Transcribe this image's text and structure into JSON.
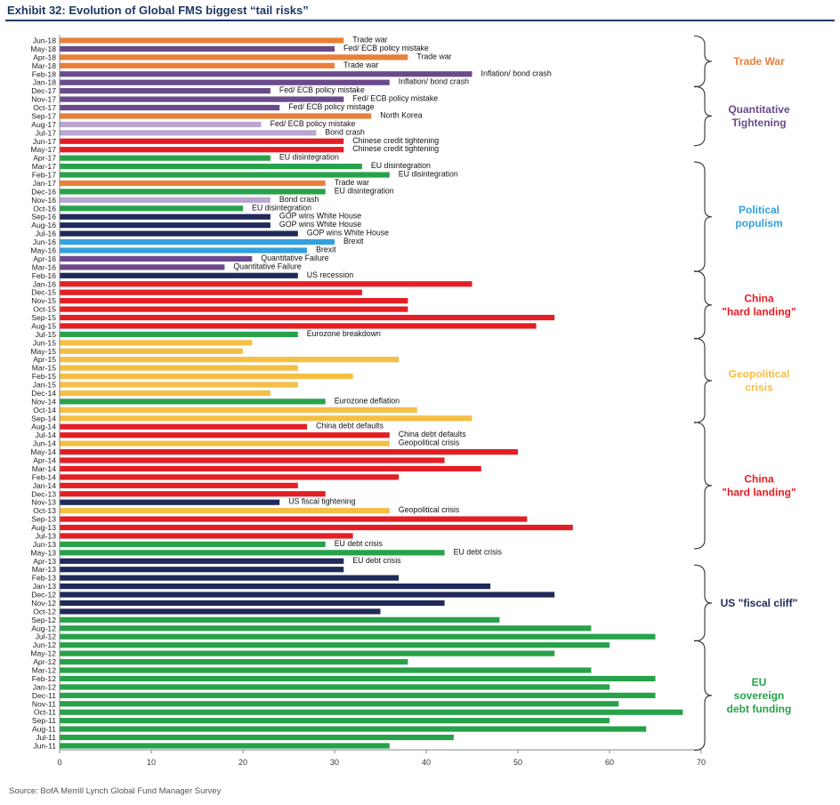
{
  "header": {
    "title": "Exhibit 32: Evolution of Global FMS biggest “tail risks”",
    "source": "Source: BofA Merrill Lynch Global Fund Manager Survey"
  },
  "colors": {
    "trade": "#e8803a",
    "purple": "#6a4a8c",
    "lavender": "#b9a7d2",
    "red": "#e31e24",
    "green": "#27a24a",
    "blue": "#34a0dc",
    "navy": "#1f2a5a",
    "yellow": "#f4bf45"
  },
  "chart_data": {
    "type": "bar",
    "orientation": "horizontal",
    "title": "Exhibit 32: Evolution of Global FMS biggest “tail risks”",
    "xlabel": "",
    "ylabel": "",
    "xlim": [
      0,
      70
    ],
    "xticks": [
      0,
      10,
      20,
      30,
      40,
      50,
      60,
      70
    ],
    "grid": false,
    "categories": [
      "Jun-18",
      "May-18",
      "Apr-18",
      "Mar-18",
      "Feb-18",
      "Jan-18",
      "Dec-17",
      "Nov-17",
      "Oct-17",
      "Sep-17",
      "Aug-17",
      "Jul-17",
      "Jun-17",
      "May-17",
      "Apr-17",
      "Mar-17",
      "Feb-17",
      "Jan-17",
      "Dec-16",
      "Nov-16",
      "Oct-16",
      "Sep-16",
      "Aug-16",
      "Jul-16",
      "Jun-16",
      "May-16",
      "Apr-16",
      "Mar-16",
      "Feb-16",
      "Jan-16",
      "Dec-15",
      "Nov-15",
      "Oct-15",
      "Sep-15",
      "Aug-15",
      "Jul-15",
      "Jun-15",
      "May-15",
      "Apr-15",
      "Mar-15",
      "Feb-15",
      "Jan-15",
      "Dec-14",
      "Nov-14",
      "Oct-14",
      "Sep-14",
      "Aug-14",
      "Jul-14",
      "Jun-14",
      "May-14",
      "Apr-14",
      "Mar-14",
      "Feb-14",
      "Jan-14",
      "Dec-13",
      "Nov-13",
      "Oct-13",
      "Sep-13",
      "Aug-13",
      "Jul-13",
      "Jun-13",
      "May-13",
      "Apr-13",
      "Mar-13",
      "Feb-13",
      "Jan-13",
      "Dec-12",
      "Nov-12",
      "Oct-12",
      "Sep-12",
      "Aug-12",
      "Jul-12",
      "Jun-12",
      "May-12",
      "Apr-12",
      "Mar-12",
      "Feb-12",
      "Jan-12",
      "Dec-11",
      "Nov-11",
      "Oct-11",
      "Sep-11",
      "Aug-11",
      "Jul-11",
      "Jun-11"
    ],
    "values": [
      31,
      30,
      38,
      30,
      45,
      36,
      23,
      31,
      24,
      34,
      22,
      28,
      31,
      31,
      23,
      33,
      36,
      29,
      29,
      23,
      20,
      23,
      23,
      26,
      30,
      27,
      21,
      18,
      26,
      45,
      33,
      38,
      38,
      54,
      52,
      26,
      21,
      20,
      37,
      26,
      32,
      26,
      23,
      29,
      39,
      45,
      27,
      36,
      36,
      50,
      42,
      46,
      37,
      26,
      29,
      24,
      36,
      51,
      56,
      32,
      29,
      42,
      31,
      31,
      37,
      47,
      54,
      42,
      35,
      48,
      58,
      65,
      60,
      54,
      38,
      58,
      65,
      60,
      65,
      61,
      68,
      60,
      64,
      43,
      36
    ],
    "bar_colors": [
      "trade",
      "purple",
      "trade",
      "trade",
      "purple",
      "purple",
      "purple",
      "purple",
      "purple",
      "trade",
      "lavender",
      "lavender",
      "red",
      "red",
      "green",
      "green",
      "green",
      "trade",
      "green",
      "lavender",
      "green",
      "navy",
      "navy",
      "navy",
      "blue",
      "blue",
      "purple",
      "purple",
      "navy",
      "red",
      "red",
      "red",
      "red",
      "red",
      "red",
      "green",
      "yellow",
      "yellow",
      "yellow",
      "yellow",
      "yellow",
      "yellow",
      "yellow",
      "green",
      "yellow",
      "yellow",
      "red",
      "red",
      "yellow",
      "red",
      "red",
      "red",
      "red",
      "red",
      "red",
      "navy",
      "yellow",
      "red",
      "red",
      "red",
      "green",
      "green",
      "navy",
      "navy",
      "navy",
      "navy",
      "navy",
      "navy",
      "navy",
      "green",
      "green",
      "green",
      "green",
      "green",
      "green",
      "green",
      "green",
      "green",
      "green",
      "green",
      "green",
      "green",
      "green",
      "green",
      "green"
    ],
    "bar_labels": [
      "Trade war",
      "Fed/ ECB policy mistake",
      "Trade war",
      "Trade war",
      "Inflation/ bond crash",
      "Inflation/ bond crash",
      "Fed/ ECB policy mistake",
      "Fed/ ECB policy mistake",
      "Fed/ ECB policy mistage",
      "North Korea",
      "Fed/ ECB policy mistake",
      "Bond crash",
      "Chinese credit tightening",
      "Chinese credit tightening",
      "EU disintegration",
      "EU disintegration",
      "EU disintegration",
      "Trade war",
      "EU disintegration",
      "Bond crash",
      "EU disintegration",
      "GOP wins White House",
      "GOP wins White House",
      "GOP wins White House",
      "Brexit",
      "Brexit",
      "Quantitative Failure",
      "Quantitative Failure",
      "US recession",
      "",
      "",
      "",
      "",
      "",
      "",
      "Eurozone breakdown",
      "",
      "",
      "",
      "",
      "",
      "",
      "",
      "Eurozone deflation",
      "",
      "",
      "China debt defaults",
      "China debt defaults",
      "Geopolitical crisis",
      "",
      "",
      "",
      "",
      "",
      "",
      "US fiscal tightening",
      "Geopolitical crisis",
      "",
      "",
      "",
      "EU debt crisis",
      "EU debt crisis",
      "EU debt crisis",
      "",
      "",
      "",
      "",
      "",
      "",
      "",
      "",
      "",
      "",
      "",
      "",
      "",
      "",
      "",
      "",
      "",
      "",
      "",
      "",
      "",
      ""
    ],
    "eras": [
      {
        "label": [
          "Trade War"
        ],
        "color": "trade",
        "from": 0,
        "to": 5
      },
      {
        "label": [
          "Quantitative",
          "Tightening"
        ],
        "color": "purple",
        "from": 6,
        "to": 12
      },
      {
        "label": [
          "Political",
          "populism"
        ],
        "color": "blue",
        "from": 15,
        "to": 27
      },
      {
        "label": [
          "China",
          "\"hard landing\""
        ],
        "color": "red",
        "from": 28,
        "to": 35
      },
      {
        "label": [
          "Geopolitical",
          "crisis"
        ],
        "color": "yellow",
        "from": 36,
        "to": 45
      },
      {
        "label": [
          "China",
          "\"hard landing\""
        ],
        "color": "red",
        "from": 46,
        "to": 60
      },
      {
        "label": [
          "US \"fiscal cliff\""
        ],
        "color": "navy",
        "from": 63,
        "to": 71
      },
      {
        "label": [
          "EU",
          "sovereign",
          "debt funding"
        ],
        "color": "green",
        "from": 72,
        "to": 84
      }
    ]
  }
}
